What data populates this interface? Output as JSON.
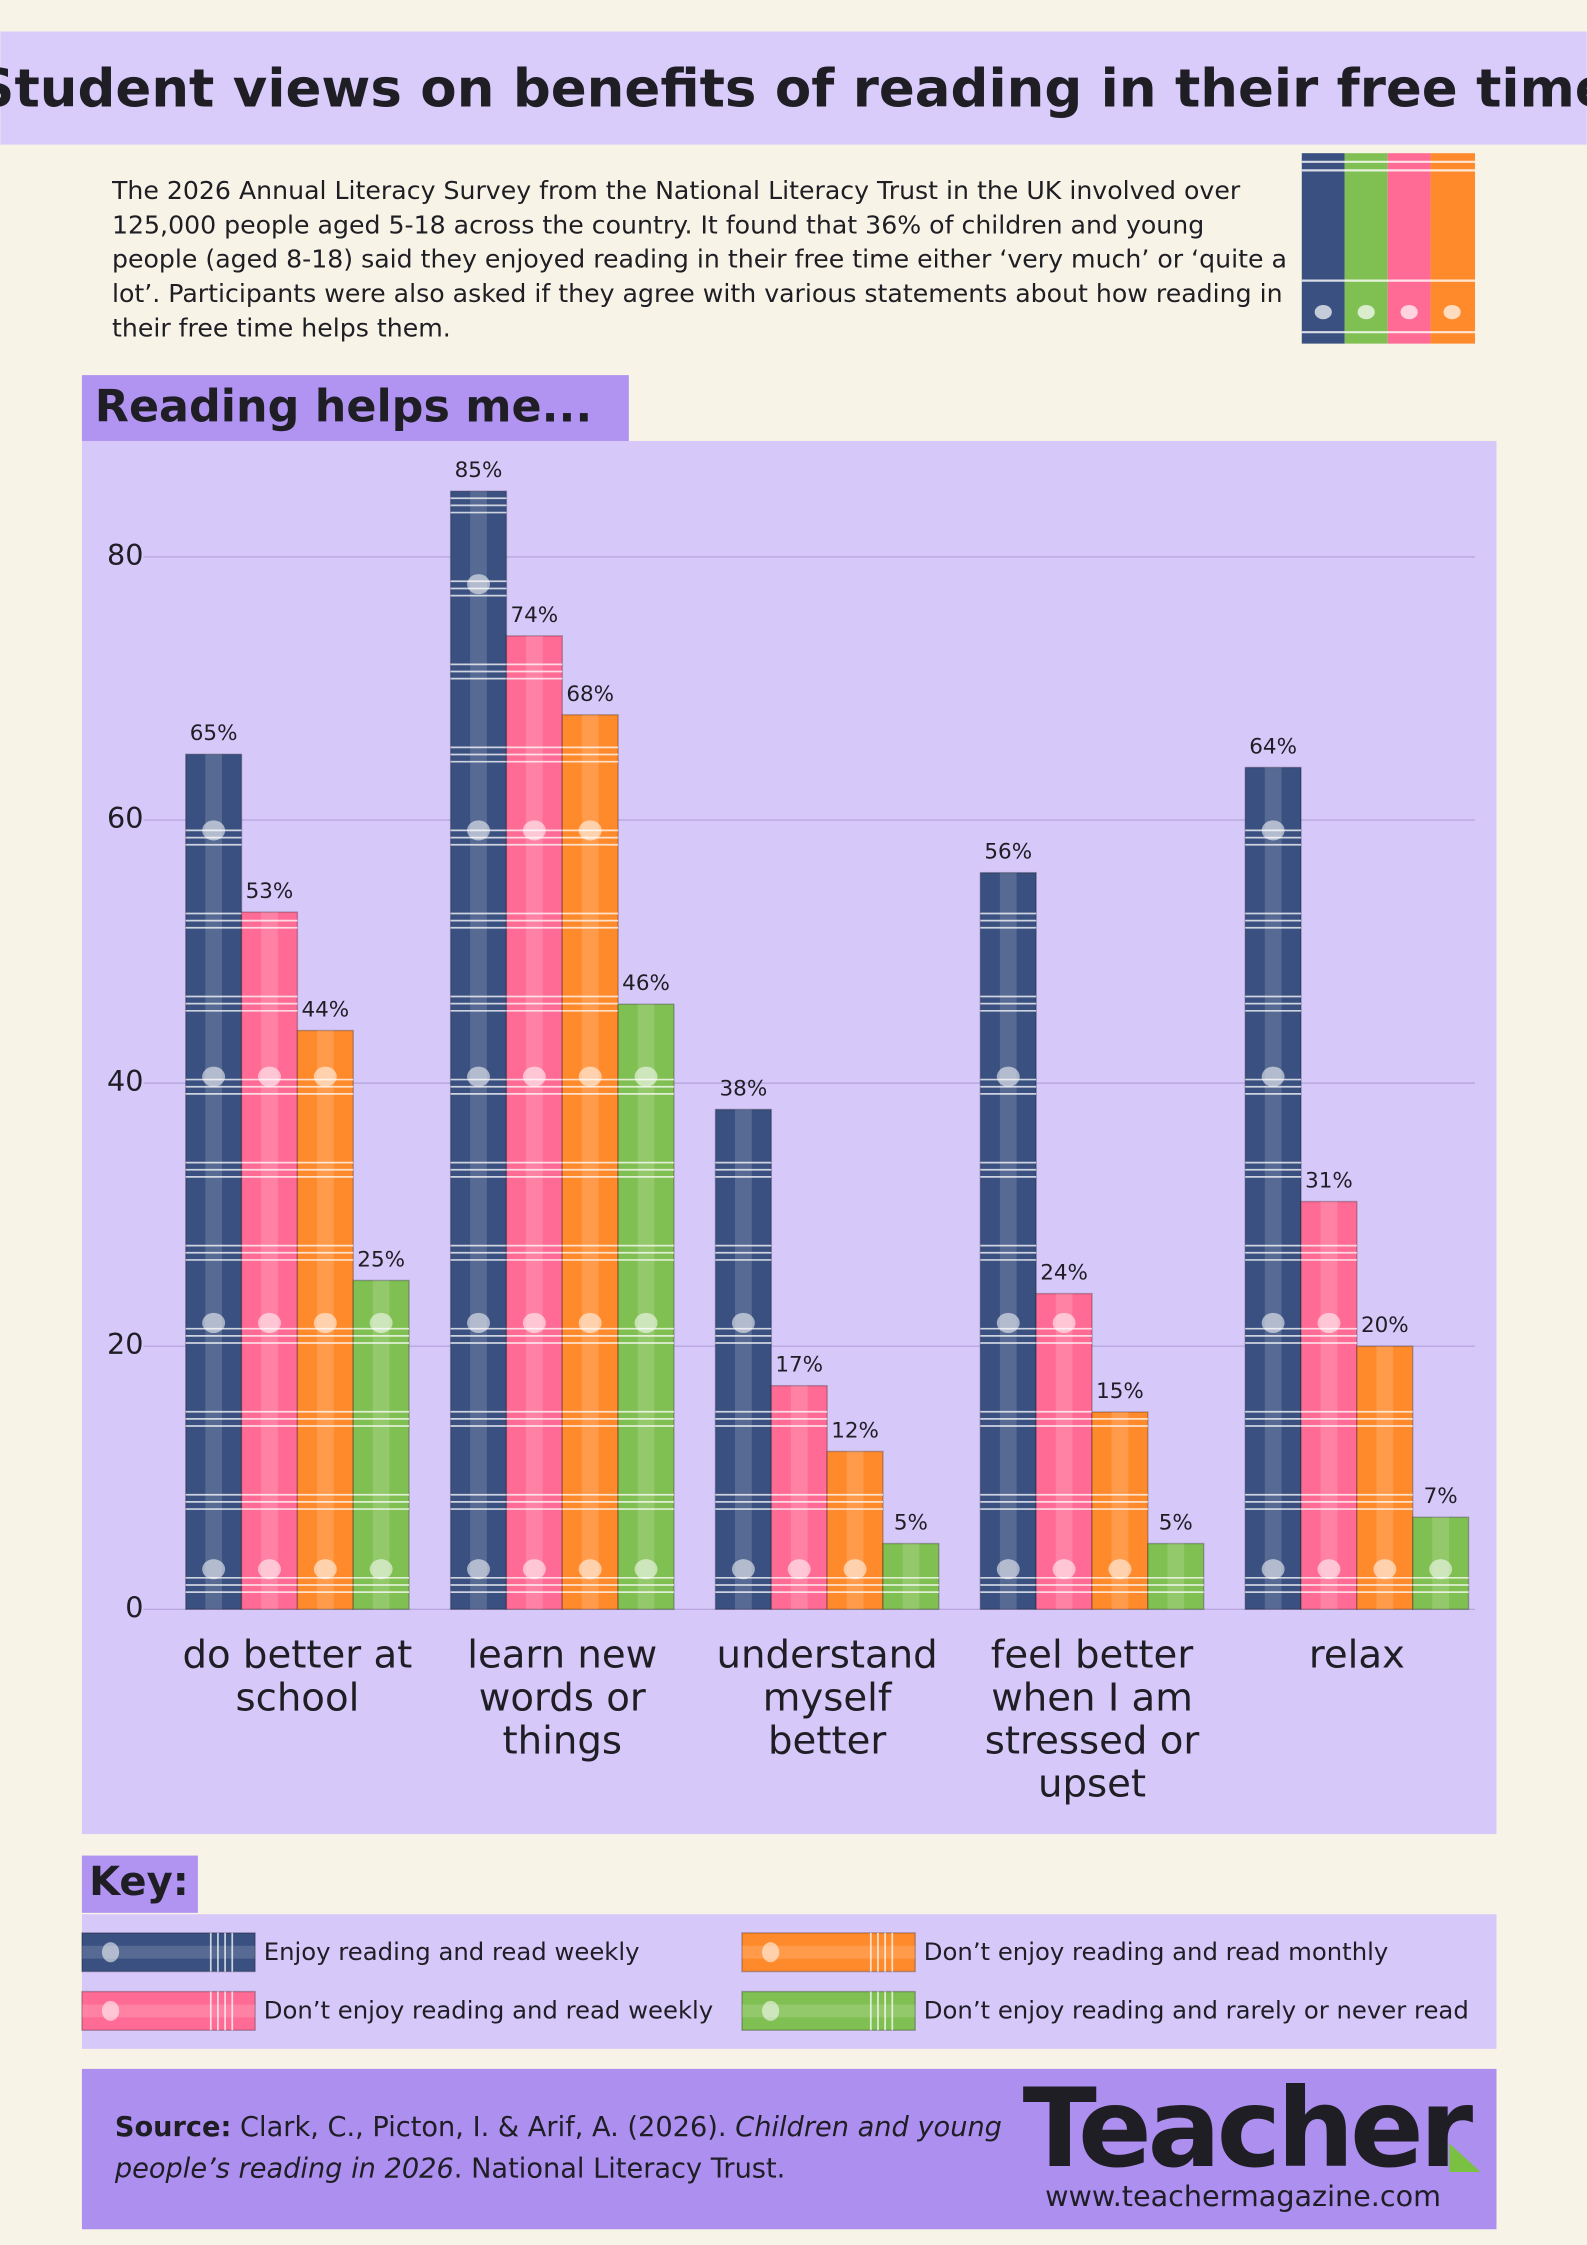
{
  "header": {
    "title": "Student views on benefits of reading in their free time"
  },
  "intro": "The 2026 Annual Literacy Survey from the National Literacy Trust in the UK involved over 125,000 people aged 5-18 across the country. It found that 36% of children and young people (aged 8-18) said they enjoyed reading in their free time either ‘very much’ or ‘quite a lot’. Participants were also asked if they agree with various statements about how reading in their free time helps them.",
  "chart_data": {
    "type": "bar",
    "title": "Reading helps me...",
    "categories": [
      "do better at school",
      "learn new words or things",
      "understand myself better",
      "feel better when I am stressed or upset",
      "relax"
    ],
    "series": [
      {
        "name": "Enjoy reading and read weekly",
        "color": "#3a5080",
        "values": [
          65,
          85,
          38,
          56,
          64
        ],
        "value_labels": [
          "65%",
          "85%",
          "38%",
          "56%",
          "64%"
        ]
      },
      {
        "name": "Don’t enjoy reading and read weekly",
        "color": "#ff6b94",
        "values": [
          53,
          74,
          17,
          24,
          31
        ],
        "value_labels": [
          "53%",
          "74%",
          "17%",
          "24%",
          "31%"
        ]
      },
      {
        "name": "Don’t enjoy reading and read monthly",
        "color": "#ff8a2b",
        "values": [
          44,
          68,
          12,
          15,
          20
        ],
        "value_labels": [
          "44%",
          "68%",
          "12%",
          "15%",
          "20%"
        ]
      },
      {
        "name": "Don’t enjoy reading and rarely or never read",
        "color": "#80bf52",
        "values": [
          25,
          46,
          5,
          5,
          7
        ],
        "value_labels": [
          "25%",
          "46%",
          "5%",
          "5%",
          "7%"
        ]
      }
    ],
    "ylim": [
      0,
      88
    ],
    "yticks": [
      0,
      20,
      40,
      60,
      80
    ],
    "grid": true,
    "legend_title": "Key:"
  },
  "footer": {
    "source_label": "Source:",
    "source_authors": "Clark, C., Picton, I. & Arif, A. (2026).",
    "source_title": "Children and young people’s reading in 2026",
    "source_publisher": ". National Literacy Trust.",
    "logo": "Teacher",
    "url": "www.teachermagazine.com"
  }
}
